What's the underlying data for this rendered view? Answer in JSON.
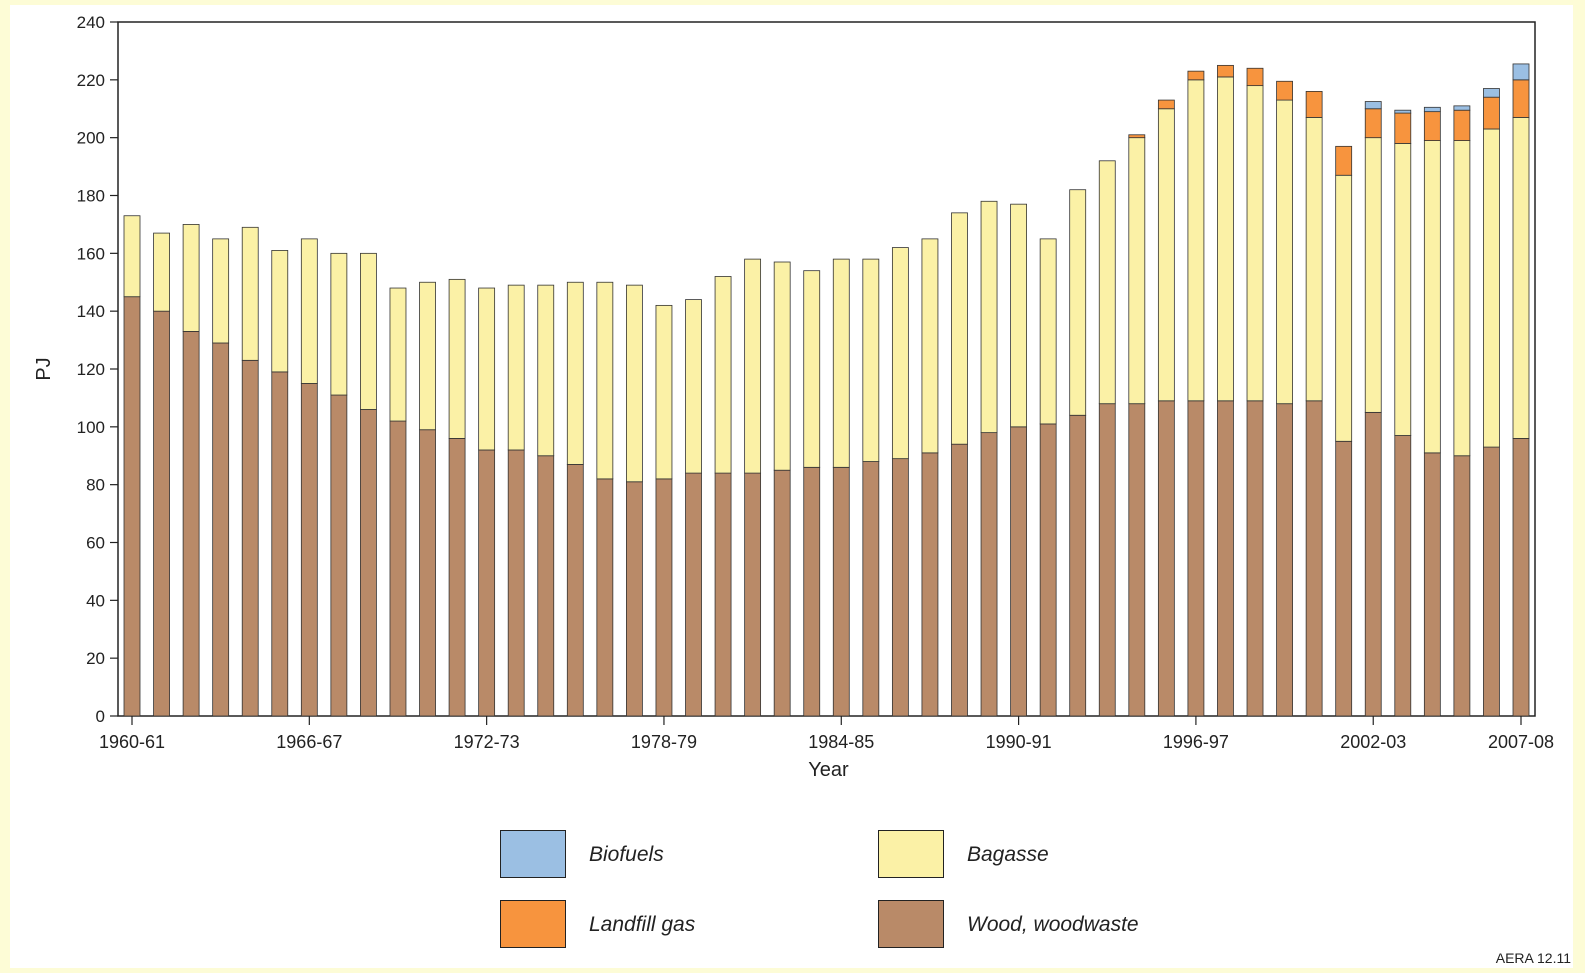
{
  "chart_data": {
    "type": "bar",
    "stacked": true,
    "title": "",
    "xlabel": "Year",
    "ylabel": "PJ",
    "ylim": [
      0,
      240
    ],
    "yticks": [
      0,
      20,
      40,
      60,
      80,
      100,
      120,
      140,
      160,
      180,
      200,
      220,
      240
    ],
    "x_tick_labels": [
      "1960-61",
      "1966-67",
      "1972-73",
      "1978-79",
      "1984-85",
      "1990-91",
      "1996-97",
      "2002-03",
      "2007-08"
    ],
    "x_tick_indices": [
      0,
      6,
      12,
      18,
      24,
      30,
      36,
      42,
      47
    ],
    "categories": [
      "1960-61",
      "1961-62",
      "1962-63",
      "1963-64",
      "1964-65",
      "1965-66",
      "1966-67",
      "1967-68",
      "1968-69",
      "1969-70",
      "1970-71",
      "1971-72",
      "1972-73",
      "1973-74",
      "1974-75",
      "1975-76",
      "1976-77",
      "1977-78",
      "1978-79",
      "1979-80",
      "1980-81",
      "1981-82",
      "1982-83",
      "1983-84",
      "1984-85",
      "1985-86",
      "1986-87",
      "1987-88",
      "1988-89",
      "1989-90",
      "1990-91",
      "1991-92",
      "1992-93",
      "1993-94",
      "1994-95",
      "1995-96",
      "1996-97",
      "1997-98",
      "1998-99",
      "1999-00",
      "2000-01",
      "2001-02",
      "2002-03",
      "2003-04",
      "2004-05",
      "2005-06",
      "2006-07",
      "2007-08"
    ],
    "series": [
      {
        "name": "Wood, woodwaste",
        "color": "#b98a68",
        "values": [
          145,
          140,
          133,
          129,
          123,
          119,
          115,
          111,
          106,
          102,
          99,
          96,
          92,
          92,
          90,
          87,
          82,
          81,
          82,
          84,
          84,
          84,
          85,
          86,
          86,
          88,
          89,
          91,
          94,
          98,
          100,
          101,
          104,
          108,
          108,
          109,
          109,
          109,
          109,
          108,
          109,
          95,
          105,
          97,
          91,
          90,
          93,
          96
        ]
      },
      {
        "name": "Bagasse",
        "color": "#fbf1a6",
        "values": [
          28,
          27,
          37,
          36,
          46,
          42,
          50,
          49,
          54,
          46,
          51,
          55,
          56,
          57,
          59,
          63,
          68,
          68,
          60,
          60,
          68,
          74,
          72,
          68,
          72,
          70,
          73,
          74,
          80,
          80,
          77,
          64,
          78,
          84,
          92,
          101,
          111,
          112,
          109,
          105,
          98,
          92,
          95,
          101,
          108,
          109,
          110,
          111
        ]
      },
      {
        "name": "Landfill gas",
        "color": "#f7943e",
        "values": [
          0,
          0,
          0,
          0,
          0,
          0,
          0,
          0,
          0,
          0,
          0,
          0,
          0,
          0,
          0,
          0,
          0,
          0,
          0,
          0,
          0,
          0,
          0,
          0,
          0,
          0,
          0,
          0,
          0,
          0,
          0,
          0,
          0,
          0,
          1,
          3,
          3,
          4,
          6,
          6.5,
          9,
          10,
          10,
          10.5,
          10,
          10.5,
          11,
          13
        ]
      },
      {
        "name": "Biofuels",
        "color": "#9bbfe3",
        "values": [
          0,
          0,
          0,
          0,
          0,
          0,
          0,
          0,
          0,
          0,
          0,
          0,
          0,
          0,
          0,
          0,
          0,
          0,
          0,
          0,
          0,
          0,
          0,
          0,
          0,
          0,
          0,
          0,
          0,
          0,
          0,
          0,
          0,
          0,
          0,
          0,
          0,
          0,
          0,
          0,
          0,
          0,
          2.5,
          1,
          1.5,
          1.5,
          3,
          5.5
        ]
      }
    ],
    "legend_order": [
      2,
      3,
      1,
      0
    ],
    "legend_placement": "bottom",
    "grid": false
  },
  "legend": {
    "biofuels": "Biofuels",
    "bagasse": "Bagasse",
    "landfill_gas": "Landfill gas",
    "wood": "Wood, woodwaste"
  },
  "colors": {
    "biofuels": "#9bbfe3",
    "bagasse": "#fbf1a6",
    "landfill_gas": "#f7943e",
    "wood": "#b98a68"
  },
  "source_note": "AERA 12.11"
}
